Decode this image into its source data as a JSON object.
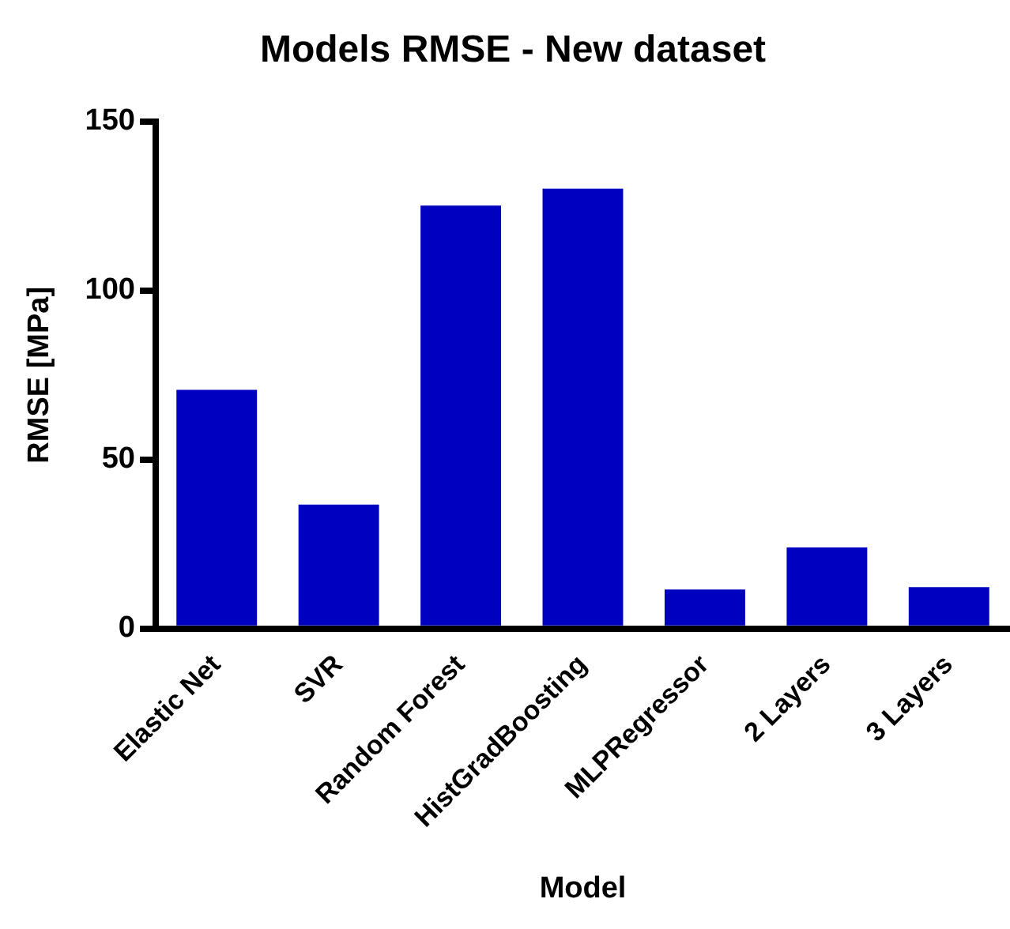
{
  "chart_data": {
    "type": "bar",
    "title": "Models RMSE - New dataset",
    "xlabel": "Model",
    "ylabel": "RMSE [MPa]",
    "categories": [
      "Elastic Net",
      "SVR",
      "Random Forest",
      "HistGradBoosting",
      "MLPRegressor",
      "2 Layers",
      "3 Layers"
    ],
    "values": [
      70.6,
      36.7,
      125.1,
      130.1,
      11.6,
      24,
      12.3
    ],
    "color": "#0000c0",
    "ylim": [
      0,
      150
    ],
    "yticks": [
      0,
      50,
      100,
      150
    ],
    "grid": false,
    "legend": false
  }
}
